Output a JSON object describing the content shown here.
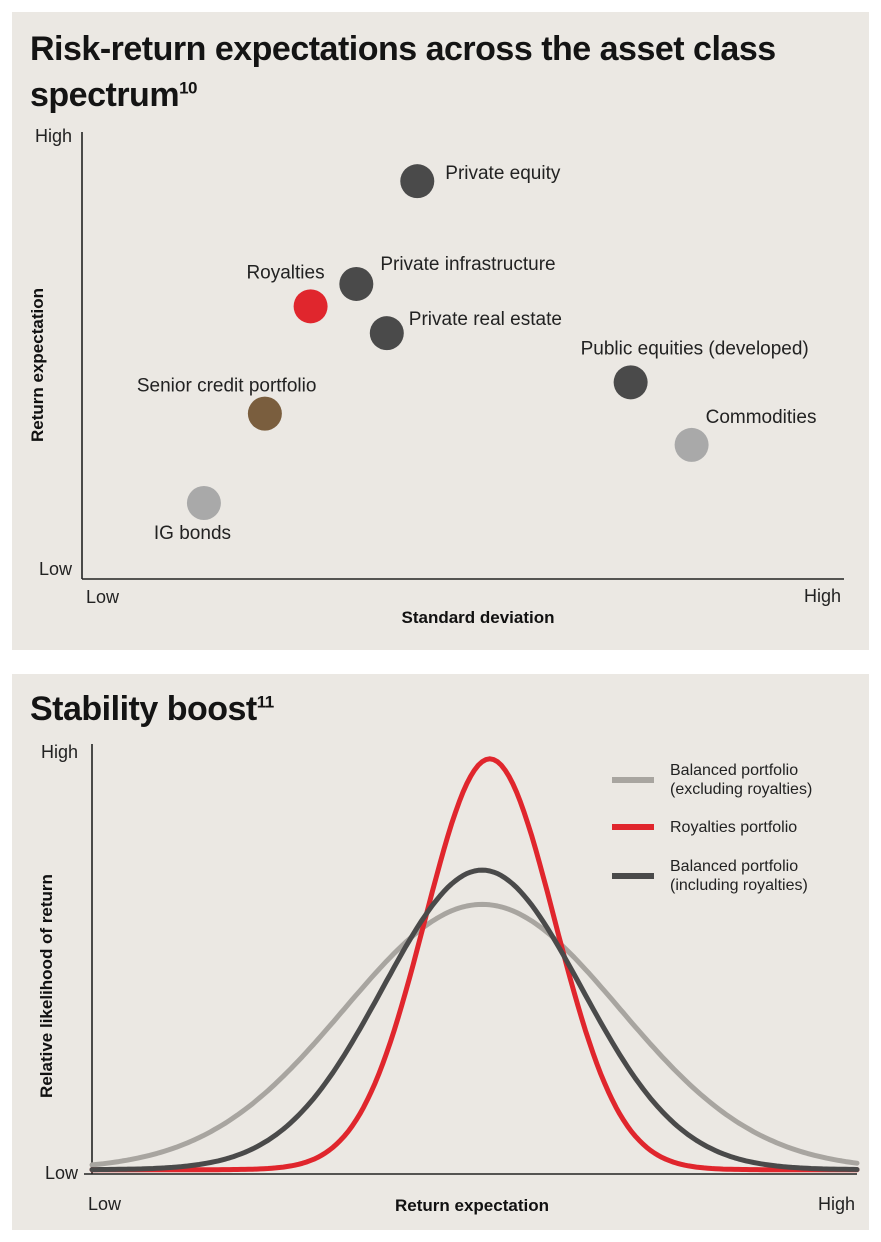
{
  "chart_data": [
    {
      "type": "scatter",
      "title": "Risk-return expectations across the asset class spectrum",
      "title_footnote": "10",
      "xlabel": "Standard deviation",
      "ylabel": "Return expectation",
      "x_ticks": [
        "Low",
        "High"
      ],
      "y_ticks": [
        "Low",
        "High"
      ],
      "xlim": [
        0,
        100
      ],
      "ylim": [
        0,
        100
      ],
      "points": [
        {
          "label": "Private equity",
          "x": 44,
          "y": 89,
          "color": "#4a4a4a"
        },
        {
          "label": "Private infrastructure",
          "x": 36,
          "y": 66,
          "color": "#4a4a4a"
        },
        {
          "label": "Royalties",
          "x": 30,
          "y": 61,
          "color": "#e0262d"
        },
        {
          "label": "Private real estate",
          "x": 40,
          "y": 55,
          "color": "#4a4a4a"
        },
        {
          "label": "Public equities (developed)",
          "x": 72,
          "y": 44,
          "color": "#4a4a4a"
        },
        {
          "label": "Senior credit portfolio",
          "x": 24,
          "y": 37,
          "color": "#7a5e3e"
        },
        {
          "label": "Commodities",
          "x": 80,
          "y": 30,
          "color": "#a9a9a9"
        },
        {
          "label": "IG bonds",
          "x": 16,
          "y": 17,
          "color": "#a9a9a9"
        }
      ]
    },
    {
      "type": "line",
      "title": "Stability boost",
      "title_footnote": "11",
      "xlabel": "Return expectation",
      "ylabel": "Relative likelihood of return",
      "x_ticks": [
        "Low",
        "High"
      ],
      "y_ticks": [
        "Low",
        "High"
      ],
      "xlim": [
        0,
        100
      ],
      "ylim": [
        0,
        100
      ],
      "series": [
        {
          "name": "Balanced portfolio (excluding royalties)",
          "legend_lines": [
            "Balanced portfolio",
            "(excluding royalties)"
          ],
          "color": "#a8a5a0",
          "peak_x": 51,
          "peak_y": 63,
          "spread": 18
        },
        {
          "name": "Royalties portfolio",
          "legend_lines": [
            "Royalties portfolio"
          ],
          "color": "#e0262d",
          "peak_x": 52,
          "peak_y": 97,
          "spread": 8.5
        },
        {
          "name": "Balanced portfolio (including royalties)",
          "legend_lines": [
            "Balanced portfolio",
            "(including royalties)"
          ],
          "color": "#4a4a4a",
          "peak_x": 51,
          "peak_y": 71,
          "spread": 13
        }
      ]
    }
  ]
}
